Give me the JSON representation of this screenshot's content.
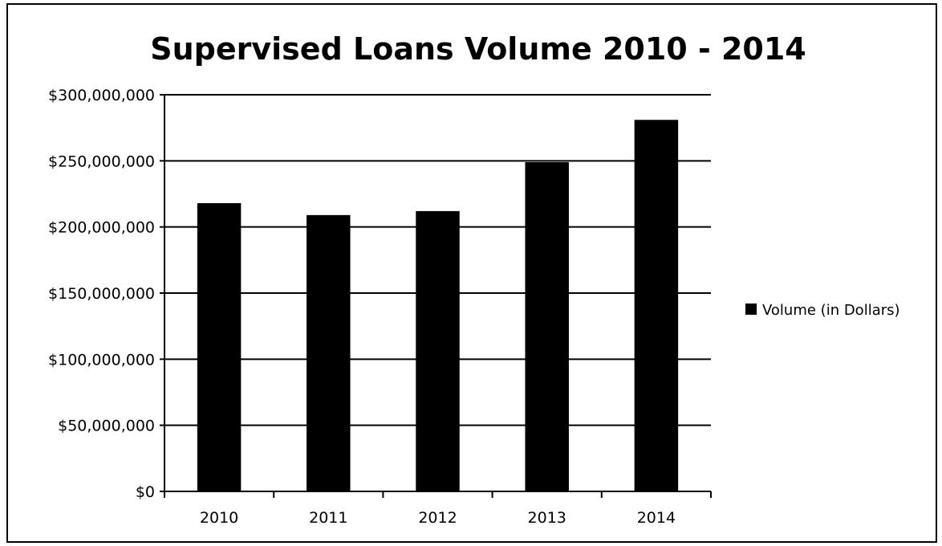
{
  "chart_data": {
    "type": "bar",
    "title": "Supervised Loans Volume  2010 - 2014",
    "xlabel": "",
    "ylabel": "",
    "categories": [
      "2010",
      "2011",
      "2012",
      "2013",
      "2014"
    ],
    "series": [
      {
        "name": "Volume (in Dollars)",
        "color": "#000000",
        "values": [
          218000000,
          209000000,
          212000000,
          249000000,
          281000000
        ]
      }
    ],
    "ylim": [
      0,
      300000000
    ],
    "yticks": [
      0,
      50000000,
      100000000,
      150000000,
      200000000,
      250000000,
      300000000
    ],
    "ytick_labels": [
      "$0",
      "$50,000,000",
      "$100,000,000",
      "$150,000,000",
      "$200,000,000",
      "$250,000,000",
      "$300,000,000"
    ],
    "grid": true,
    "legend_position": "right"
  }
}
